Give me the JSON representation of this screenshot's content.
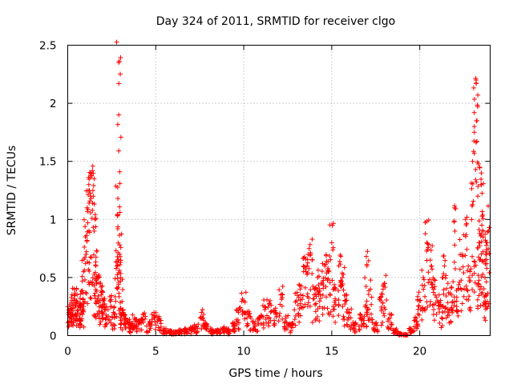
{
  "chart_data": {
    "type": "scatter",
    "title": "Day 324 of 2011, SRMTID for receiver clgo",
    "xlabel": "GPS time / hours",
    "ylabel": "SRMTID / TECUs",
    "xlim": [
      0,
      24
    ],
    "ylim": [
      0,
      2.5
    ],
    "x_ticks": [
      0,
      5,
      10,
      15,
      20
    ],
    "x_tick_labels": [
      "0",
      "5",
      "10",
      "15",
      "20"
    ],
    "y_ticks": [
      0,
      0.5,
      1,
      1.5,
      2,
      2.5
    ],
    "y_tick_labels": [
      "0",
      "0.5",
      "1",
      "1.5",
      "2",
      "2.5"
    ],
    "grid": true,
    "marker": "+",
    "color": "#ff0000",
    "series": [
      {
        "name": "SRMTID",
        "x": [
          0.0,
          0.1,
          0.2,
          0.3,
          0.4,
          0.5,
          0.6,
          0.7,
          0.8,
          0.9,
          1.0,
          1.1,
          1.2,
          1.3,
          1.4,
          1.5,
          1.6,
          1.7,
          1.8,
          1.9,
          2.0,
          2.2,
          2.4,
          2.6,
          2.8,
          2.85,
          2.9,
          2.95,
          3.0,
          3.1,
          3.2,
          3.4,
          3.6,
          3.8,
          4.0,
          4.3,
          4.6,
          4.9,
          5.2,
          5.5,
          5.8,
          6.1,
          6.4,
          6.7,
          7.0,
          7.3,
          7.6,
          7.9,
          8.2,
          8.5,
          8.8,
          9.1,
          9.4,
          9.7,
          10.0,
          10.3,
          10.6,
          10.9,
          11.2,
          11.5,
          11.8,
          12.1,
          12.4,
          12.7,
          13.0,
          13.2,
          13.4,
          13.6,
          13.8,
          14.0,
          14.2,
          14.4,
          14.6,
          14.8,
          15.0,
          15.2,
          15.4,
          15.6,
          15.8,
          16.0,
          16.3,
          16.6,
          16.9,
          17.0,
          17.2,
          17.5,
          17.8,
          18.0,
          18.3,
          18.6,
          18.9,
          19.2,
          19.5,
          19.8,
          20.0,
          20.2,
          20.4,
          20.6,
          20.8,
          21.0,
          21.2,
          21.4,
          21.6,
          21.8,
          22.0,
          22.2,
          22.4,
          22.6,
          22.8,
          23.0,
          23.1,
          23.2,
          23.3,
          23.4,
          23.5,
          23.6,
          23.7,
          23.8,
          23.9
        ],
        "y": [
          0.25,
          0.2,
          0.3,
          0.28,
          0.35,
          0.3,
          0.22,
          0.32,
          0.27,
          0.55,
          0.85,
          1.1,
          1.3,
          1.2,
          1.42,
          0.9,
          0.6,
          0.5,
          0.45,
          0.35,
          0.3,
          0.25,
          0.3,
          0.2,
          0.6,
          1.18,
          2.35,
          0.7,
          0.5,
          0.2,
          0.15,
          0.12,
          0.1,
          0.15,
          0.12,
          0.18,
          0.1,
          0.2,
          0.15,
          0.05,
          0.04,
          0.03,
          0.04,
          0.05,
          0.06,
          0.08,
          0.2,
          0.1,
          0.05,
          0.04,
          0.06,
          0.05,
          0.1,
          0.2,
          0.3,
          0.18,
          0.1,
          0.15,
          0.25,
          0.3,
          0.2,
          0.35,
          0.15,
          0.1,
          0.3,
          0.4,
          0.55,
          0.6,
          0.7,
          0.35,
          0.5,
          0.45,
          0.6,
          0.55,
          0.8,
          0.4,
          0.6,
          0.5,
          0.3,
          0.2,
          0.1,
          0.15,
          0.25,
          0.6,
          0.4,
          0.1,
          0.3,
          0.45,
          0.15,
          0.05,
          0.02,
          0.01,
          0.05,
          0.15,
          0.3,
          0.5,
          0.8,
          0.65,
          0.4,
          0.3,
          0.25,
          0.6,
          0.45,
          0.35,
          0.9,
          0.4,
          0.7,
          1.0,
          0.5,
          1.5,
          1.8,
          2.2,
          1.2,
          0.8,
          1.4,
          0.9,
          0.5,
          0.7,
          0.9
        ]
      }
    ],
    "dense_envelope_note_points": [
      [
        1.5,
        1.35
      ],
      [
        1.45,
        1.2
      ],
      [
        1.55,
        1.0
      ],
      [
        2.9,
        2.17
      ],
      [
        2.9,
        1.9
      ],
      [
        2.9,
        1.59
      ],
      [
        2.95,
        0.78
      ],
      [
        3.0,
        0.63
      ],
      [
        23.2,
        2.17
      ],
      [
        23.3,
        2.07
      ],
      [
        23.25,
        1.85
      ],
      [
        23.1,
        1.75
      ],
      [
        23.4,
        1.45
      ],
      [
        23.5,
        1.3
      ]
    ]
  }
}
